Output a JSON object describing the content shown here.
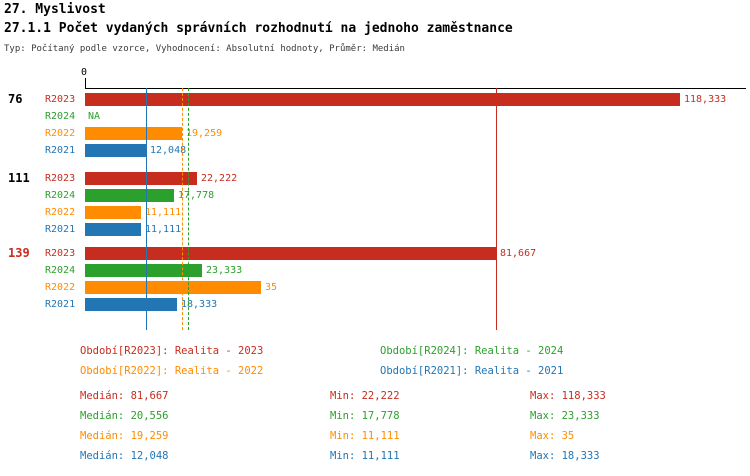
{
  "title": "27. Myslivost",
  "subtitle": "27.1.1 Počet vydaných správních rozhodnutí na jednoho zaměstnance",
  "meta": "Typ: Počítaný podle vzorce, Vyhodnocení: Absolutní hodnoty, Průměr: Medián",
  "colors": {
    "R2023": "#c62d1f",
    "R2024": "#2ca02c",
    "R2022": "#ff8c00",
    "R2021": "#2276b4"
  },
  "chart_data": {
    "type": "bar",
    "orientation": "horizontal",
    "x_axis": {
      "origin_label": "0",
      "scale_note": "values in thousands with Czech decimal comma"
    },
    "series_order": [
      "R2023",
      "R2024",
      "R2022",
      "R2021"
    ],
    "groups": [
      {
        "label": "76",
        "label_color": "#000000",
        "bars": [
          {
            "series": "R2023",
            "value": 118.333,
            "display": "118,333"
          },
          {
            "series": "R2024",
            "value": null,
            "display": "NA"
          },
          {
            "series": "R2022",
            "value": 19.259,
            "display": "19,259"
          },
          {
            "series": "R2021",
            "value": 12.048,
            "display": "12,048"
          }
        ]
      },
      {
        "label": "111",
        "label_color": "#000000",
        "bars": [
          {
            "series": "R2023",
            "value": 22.222,
            "display": "22,222"
          },
          {
            "series": "R2024",
            "value": 17.778,
            "display": "17,778"
          },
          {
            "series": "R2022",
            "value": 11.111,
            "display": "11,111"
          },
          {
            "series": "R2021",
            "value": 11.111,
            "display": "11,111"
          }
        ]
      },
      {
        "label": "139",
        "label_color": "#c62d1f",
        "bars": [
          {
            "series": "R2023",
            "value": 81.667,
            "display": "81,667"
          },
          {
            "series": "R2024",
            "value": 23.333,
            "display": "23,333"
          },
          {
            "series": "R2022",
            "value": 35,
            "display": "35"
          },
          {
            "series": "R2021",
            "value": 18.333,
            "display": "18,333"
          }
        ]
      }
    ],
    "median_lines": [
      {
        "series": "R2023",
        "value": 81.667,
        "style": "solid"
      },
      {
        "series": "R2024",
        "value": 20.556,
        "style": "dashed"
      },
      {
        "series": "R2022",
        "value": 19.259,
        "style": "dashed"
      },
      {
        "series": "R2021",
        "value": 12.048,
        "style": "solid"
      }
    ]
  },
  "legend": [
    {
      "series": "R2023",
      "label": "Období[R2023]: Realita - 2023"
    },
    {
      "series": "R2024",
      "label": "Období[R2024]: Realita - 2024"
    },
    {
      "series": "R2022",
      "label": "Období[R2022]: Realita - 2022"
    },
    {
      "series": "R2021",
      "label": "Období[R2021]: Realita - 2021"
    }
  ],
  "stats": [
    {
      "series": "R2023",
      "median": "Medián: 81,667",
      "min": "Min: 22,222",
      "max": "Max: 118,333"
    },
    {
      "series": "R2024",
      "median": "Medián: 20,556",
      "min": "Min: 17,778",
      "max": "Max: 23,333"
    },
    {
      "series": "R2022",
      "median": "Medián: 19,259",
      "min": "Min: 11,111",
      "max": "Max: 35"
    },
    {
      "series": "R2021",
      "median": "Medián: 12,048",
      "min": "Min: 11,111",
      "max": "Max: 18,333"
    }
  ]
}
